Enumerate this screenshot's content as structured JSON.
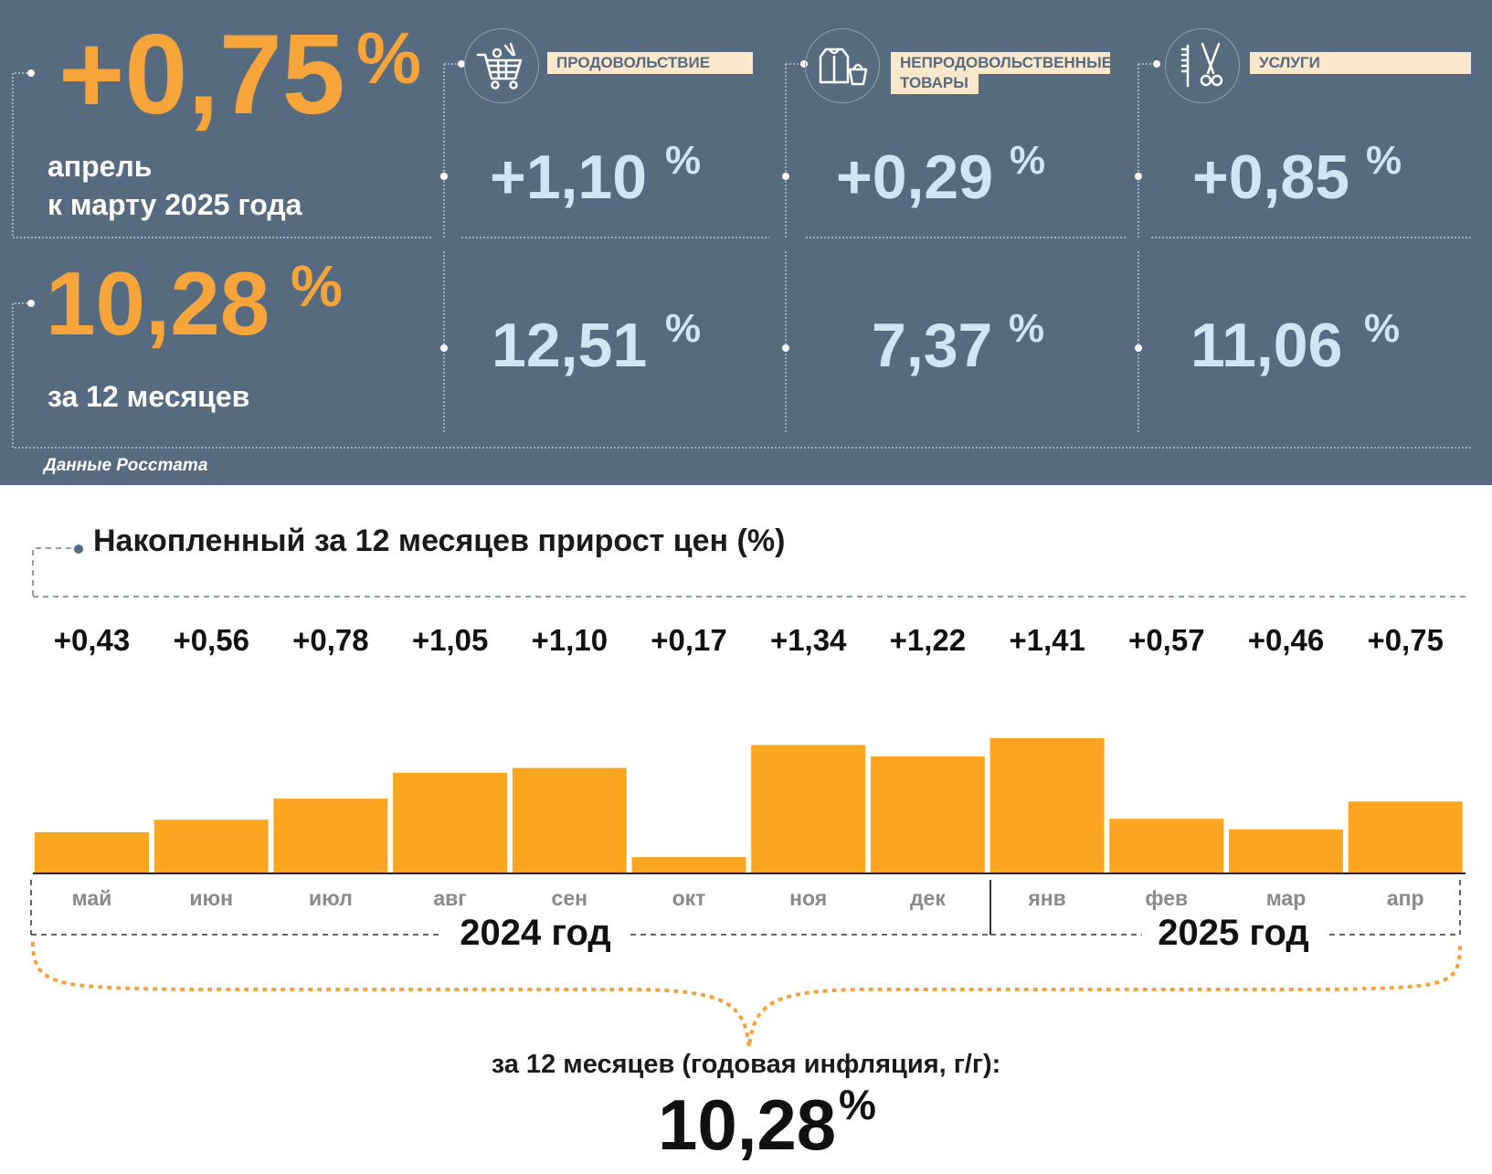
{
  "monthly": {
    "value": "+0,75",
    "unit": "%",
    "line1": "апрель",
    "line2": "к марту 2025 года"
  },
  "yearly": {
    "value": "10,28",
    "unit": "%",
    "label": "за 12 месяцев"
  },
  "categories": [
    {
      "label": "ПРОДОВОЛЬСТВИЕ",
      "icon": "shopping-cart-icon",
      "monthly": "+1,10",
      "yearly": "12,51",
      "unit": "%"
    },
    {
      "label_line1": "НЕПРОДОВОЛЬСТВЕННЫЕ",
      "label_line2": "ТОВАРЫ",
      "icon": "clothing-bag-icon",
      "monthly": "+0,29",
      "yearly": "7,37",
      "unit": "%"
    },
    {
      "label": "УСЛУГИ",
      "icon": "comb-scissors-icon",
      "monthly": "+0,85",
      "yearly": "11,06",
      "unit": "%"
    }
  ],
  "source": "Данные Росстата",
  "chart_title": "Накопленный за 12 месяцев прирост цен (%)",
  "chart_data": {
    "type": "bar",
    "title": "Накопленный за 12 месяцев прирост цен (%)",
    "categories": [
      "май",
      "июн",
      "июл",
      "авг",
      "сен",
      "окт",
      "ноя",
      "дек",
      "янв",
      "фев",
      "мар",
      "апр"
    ],
    "values": [
      0.43,
      0.56,
      0.78,
      1.05,
      1.1,
      0.17,
      1.34,
      1.22,
      1.41,
      0.57,
      0.46,
      0.75
    ],
    "value_labels": [
      "+0,43",
      "+0,56",
      "+0,78",
      "+1,05",
      "+1,10",
      "+0,17",
      "+1,34",
      "+1,22",
      "+1,41",
      "+0,57",
      "+0,46",
      "+0,75"
    ],
    "groups": [
      {
        "label": "2024 год",
        "months": 8
      },
      {
        "label": "2025 год",
        "months": 4
      }
    ],
    "ylim": [
      0,
      1.5
    ],
    "grid": false,
    "bar_color": "#fba620"
  },
  "result": {
    "label": "за 12 месяцев (годовая инфляция, г/г):",
    "value": "10,28",
    "unit": "%"
  },
  "colors": {
    "panel": "#566a80",
    "orange": "#f7a43a",
    "light_blue": "#cfe6f5",
    "label_bg": "#fbe7cc"
  }
}
